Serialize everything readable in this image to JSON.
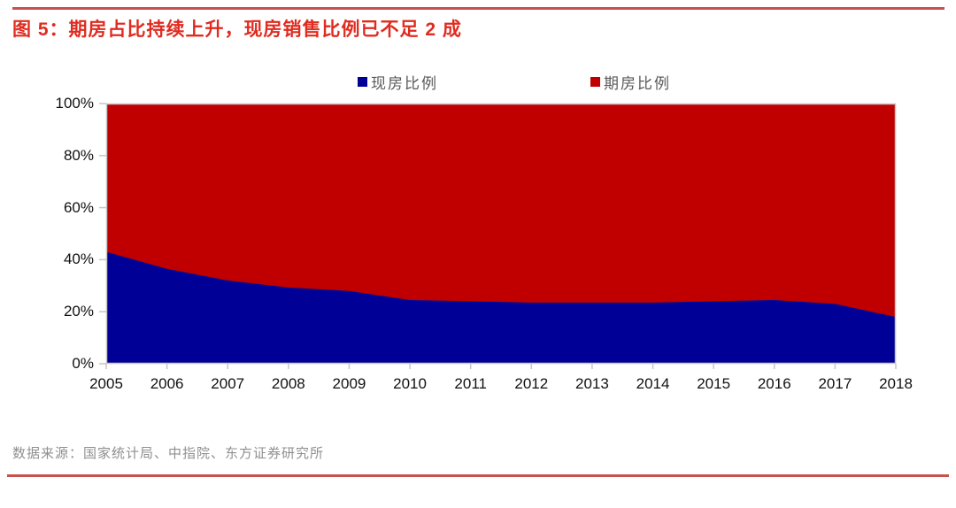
{
  "page": {
    "title": "图 5：期房占比持续上升，现房销售比例已不足 2 成",
    "title_color": "#E02B20",
    "rule_color": "#C9504C",
    "source_note": "数据来源：国家统计局、中指院、东方证券研究所"
  },
  "chart_data": {
    "type": "area",
    "stacked": true,
    "title": "图 5：期房占比持续上升，现房销售比例已不足 2 成",
    "x": [
      2005,
      2006,
      2007,
      2008,
      2009,
      2010,
      2011,
      2012,
      2013,
      2014,
      2015,
      2016,
      2017,
      2018
    ],
    "series": [
      {
        "name": "现房比例",
        "color": "#000096",
        "values": [
          43,
          36.5,
          32,
          29.3,
          28,
          24.5,
          24,
          23.5,
          23.5,
          23.5,
          24,
          24.5,
          23,
          18
        ]
      },
      {
        "name": "期房比例",
        "color": "#C00000",
        "values": [
          57,
          63.5,
          68,
          70.7,
          72,
          75.5,
          76,
          76.5,
          76.5,
          76.5,
          76,
          75.5,
          77,
          82
        ]
      }
    ],
    "ylim": [
      0,
      100
    ],
    "yticks": [
      {
        "label": "0%",
        "value": 0
      },
      {
        "label": "20%",
        "value": 20
      },
      {
        "label": "40%",
        "value": 40
      },
      {
        "label": "60%",
        "value": 60
      },
      {
        "label": "80%",
        "value": 80
      },
      {
        "label": "100%",
        "value": 100
      }
    ],
    "legend_position": "top-center",
    "grid": false,
    "axis_color": "#C6C6C6",
    "tick_label_color": "#111111"
  }
}
